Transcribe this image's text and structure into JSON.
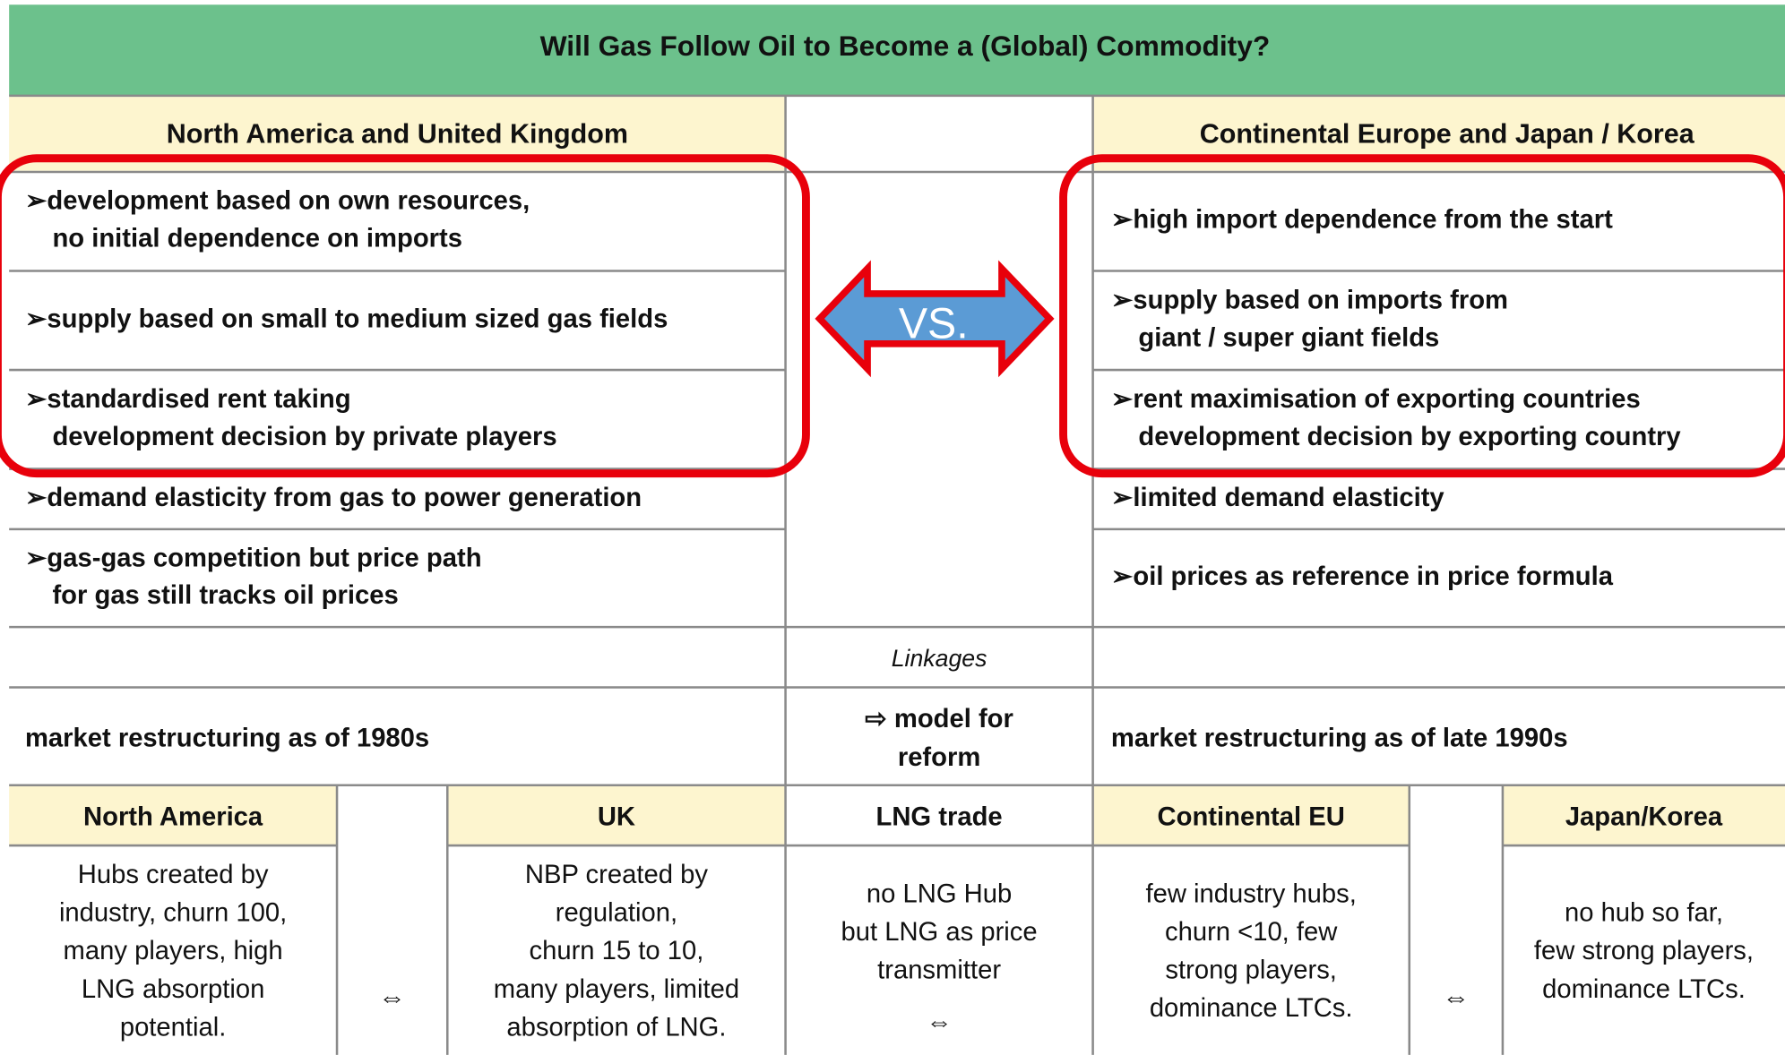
{
  "title": "Will Gas Follow Oil to Become a (Global) Commodity?",
  "left_header": "North America and United Kingdom",
  "right_header": "Continental Europe and Japan / Korea",
  "left_items": [
    [
      "➢development based on own resources,",
      "no initial dependence on imports"
    ],
    [
      "➢supply based on small to medium sized gas fields"
    ],
    [
      "➢standardised rent taking",
      "development decision by private players"
    ],
    [
      "➢demand elasticity from gas to power generation"
    ],
    [
      "➢gas-gas competition but price path",
      "for gas still tracks oil prices"
    ]
  ],
  "right_items": [
    [
      "➢high import dependence from the start"
    ],
    [
      "➢supply based on imports from",
      "giant / super giant fields"
    ],
    [
      "➢rent maximisation of exporting countries",
      "development  decision by exporting country"
    ],
    [
      "➢limited demand elasticity"
    ],
    [
      "➢oil prices as reference in price formula"
    ]
  ],
  "vs_label": "VS.",
  "linkages": "Linkages",
  "left_restructuring": "market restructuring as of 1980s",
  "middle_restructuring": [
    "⇨ model for",
    "reform"
  ],
  "right_restructuring": "market restructuring as of late 1990s",
  "bottom_columns": [
    {
      "header": "North America",
      "lines": [
        "Hubs created by",
        "industry, churn 100,",
        "many players, high",
        "LNG absorption",
        "potential."
      ]
    },
    {
      "header": "UK",
      "lines": [
        "NBP created by",
        "regulation,",
        "churn 15 to 10,",
        "many players, limited",
        "absorption of LNG."
      ]
    },
    {
      "header": "LNG  trade",
      "lines": [
        "no LNG Hub",
        "but LNG as price",
        "transmitter",
        "⇔"
      ]
    },
    {
      "header": "Continental EU",
      "lines": [
        "few industry hubs,",
        "churn <10, few",
        "strong players,",
        "dominance LTCs."
      ]
    },
    {
      "header": "Japan/Korea",
      "lines": [
        "no hub so far,",
        "few strong players,",
        "dominance LTCs."
      ]
    }
  ],
  "bottom_separators": [
    "⇔",
    "⇔"
  ]
}
